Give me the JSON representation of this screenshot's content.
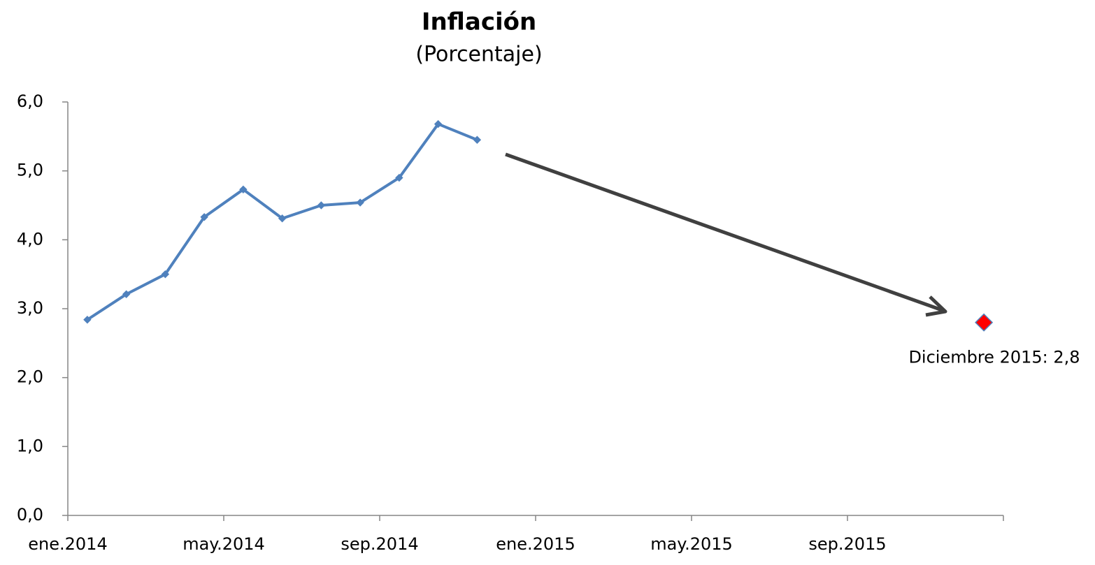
{
  "chart_data": {
    "type": "line",
    "title": "Inflación",
    "subtitle": "(Porcentaje)",
    "categories": [
      "ene.2014",
      null,
      null,
      null,
      "may.2014",
      null,
      null,
      null,
      "sep.2014",
      null,
      null,
      null,
      "ene.2015",
      null,
      null,
      null,
      "may.2015",
      null,
      null,
      null,
      "sep.2015",
      null,
      null,
      null
    ],
    "series": [
      {
        "color": "#4f81bd",
        "values": [
          2.84,
          3.21,
          3.5,
          4.33,
          4.73,
          4.31,
          4.5,
          4.54,
          4.9,
          5.68,
          5.45,
          null,
          null,
          null,
          null,
          null,
          null,
          null,
          null,
          null,
          null,
          null,
          null,
          null
        ]
      },
      {
        "color": "#ff0000",
        "values": [
          null,
          null,
          null,
          null,
          null,
          null,
          null,
          null,
          null,
          null,
          null,
          null,
          null,
          null,
          null,
          null,
          null,
          null,
          null,
          null,
          null,
          null,
          null,
          2.8
        ]
      }
    ],
    "annotations": [
      {
        "text": "Diciembre 2015: 2,8",
        "series": 1,
        "index": 23
      }
    ],
    "ylim": [
      0,
      6
    ],
    "yticks": [
      {
        "value": 0,
        "label": "0,0"
      },
      {
        "value": 1,
        "label": "1,0"
      },
      {
        "value": 2,
        "label": "2,0"
      },
      {
        "value": 3,
        "label": "3,0"
      },
      {
        "value": 4,
        "label": "4,0"
      },
      {
        "value": 5,
        "label": "5,0"
      },
      {
        "value": 6,
        "label": "6,0"
      }
    ],
    "grid": false
  }
}
